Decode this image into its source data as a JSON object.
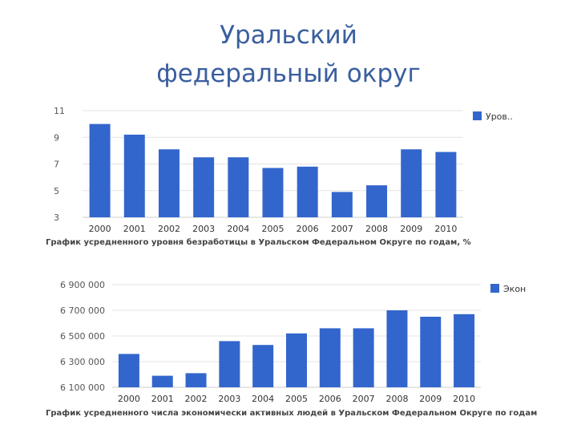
{
  "slide": {
    "title_line1": "Уральский",
    "title_line2": "федеральный округ"
  },
  "chart_data": [
    {
      "type": "bar",
      "categories": [
        "2000",
        "2001",
        "2002",
        "2003",
        "2004",
        "2005",
        "2006",
        "2007",
        "2008",
        "2009",
        "2010"
      ],
      "series": [
        {
          "name": "Уров..",
          "values": [
            10.0,
            9.2,
            8.1,
            7.5,
            7.5,
            6.7,
            6.8,
            4.9,
            5.4,
            8.1,
            7.9
          ]
        }
      ],
      "yticks": [
        "11",
        "9",
        "7",
        "5",
        "3"
      ],
      "ylim": [
        3,
        11
      ],
      "grid": true,
      "legend": "top-right",
      "color": "#3366cc",
      "caption": "График усредненного уровня безработицы в Уральском Федеральном Округе по годам, %"
    },
    {
      "type": "bar",
      "categories": [
        "2000",
        "2001",
        "2002",
        "2003",
        "2004",
        "2005",
        "2006",
        "2007",
        "2008",
        "2009",
        "2010"
      ],
      "series": [
        {
          "name": "Экон",
          "values": [
            6360000,
            6190000,
            6210000,
            6460000,
            6430000,
            6520000,
            6560000,
            6560000,
            6700000,
            6650000,
            6670000
          ]
        }
      ],
      "yticks": [
        "6 900 000",
        "6 700 000",
        "6 500 000",
        "6 300 000",
        "6 100 000"
      ],
      "ylim": [
        6100000,
        6900000
      ],
      "grid": true,
      "legend": "top-right",
      "color": "#3366cc",
      "caption": "График усредненного числа экономически активных людей в Уральском Федеральном Округе по годам"
    }
  ]
}
